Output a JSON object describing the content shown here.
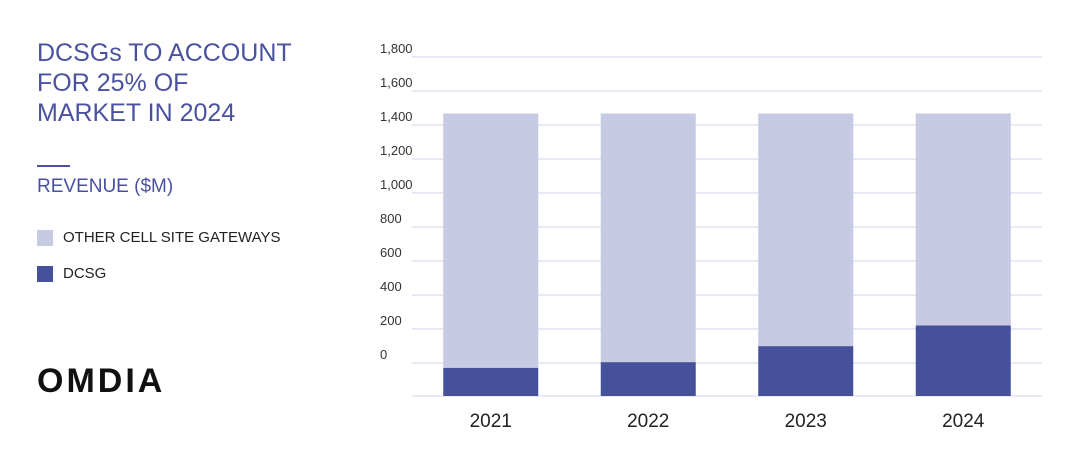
{
  "title": "DCSGs TO ACCOUNT FOR 25% OF MARKET IN 2024",
  "subtitle": "REVENUE ($M)",
  "logo": "OMDIA",
  "chart_data": {
    "type": "bar",
    "stacked": true,
    "categories": [
      "2021",
      "2022",
      "2023",
      "2024"
    ],
    "series": [
      {
        "name": "DCSG",
        "values": [
          150,
          180,
          265,
          375
        ],
        "color": "#45529b"
      },
      {
        "name": "OTHER CELL SITE GATEWAYS",
        "values": [
          1350,
          1320,
          1235,
          1125
        ],
        "color": "#c6cae3"
      }
    ],
    "ylim": [
      0,
      1800
    ],
    "yticks": [
      0,
      200,
      400,
      600,
      800,
      1000,
      1200,
      1400,
      1600,
      1800
    ],
    "ytick_labels": [
      "0",
      "200",
      "400",
      "600",
      "800",
      "1,000",
      "1,200",
      "1,400",
      "1,600",
      "1,800"
    ],
    "grid": true,
    "legend": "left"
  }
}
